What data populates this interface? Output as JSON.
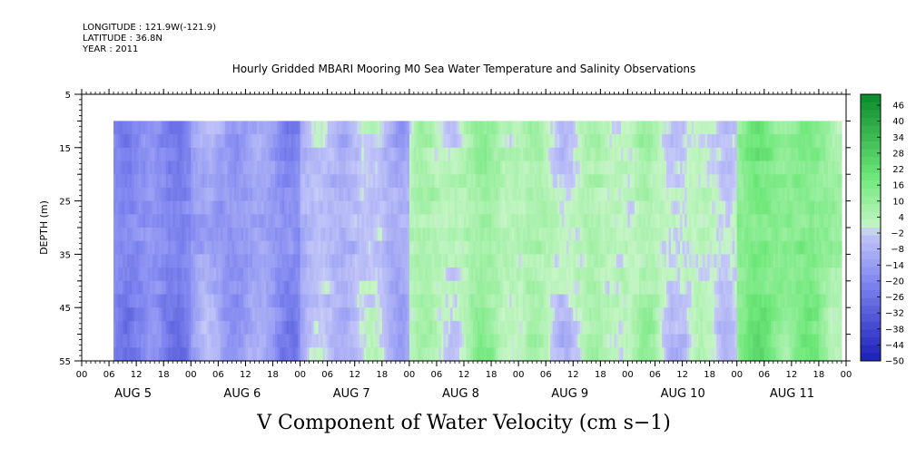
{
  "header": {
    "longitude": "LONGITUDE : 121.9W(-121.9)",
    "latitude": "LATITUDE : 36.8N",
    "year": "YEAR : 2011"
  },
  "chart_data": {
    "type": "heatmap",
    "title": "Hourly Gridded MBARI Mooring M0 Sea Water Temperature and Salinity Observations",
    "xlabel": "V Component of Water Velocity (cm s−1)",
    "ylabel": "DEPTH (m)",
    "ylim": [
      5,
      55
    ],
    "y_inverted": true,
    "yticks": [
      5,
      15,
      25,
      35,
      45,
      55
    ],
    "data_depth_range": [
      10,
      55
    ],
    "x_hour_ticks": [
      "00",
      "06",
      "12",
      "18",
      "00",
      "06",
      "12",
      "18",
      "00",
      "06",
      "12",
      "18",
      "00",
      "06",
      "12",
      "18",
      "00",
      "06",
      "12",
      "18",
      "00",
      "06",
      "12",
      "18",
      "00",
      "06",
      "12",
      "18",
      "00"
    ],
    "x_day_labels": [
      "AUG  5",
      "AUG  6",
      "AUG  7",
      "AUG  8",
      "AUG  9",
      "AUG 10",
      "AUG 11"
    ],
    "data_start_hour": 7,
    "x_hours_total": 168,
    "colorbar": {
      "labels": [
        "46",
        "40",
        "34",
        "28",
        "22",
        "16",
        "10",
        "4",
        "−2",
        "−8",
        "−14",
        "−20",
        "−26",
        "−32",
        "−38",
        "−44",
        "−50"
      ],
      "range": [
        -50,
        52
      ],
      "step": 6
    },
    "daily_mean_v": [
      -18,
      -14,
      -6,
      6,
      4,
      2,
      14
    ],
    "colors": {
      "neg_strong": "#1a1fb8",
      "neg_mid": "#7f86f0",
      "neg_light": "#c5c8f8",
      "pos_light": "#c6f5c6",
      "pos_mid": "#6fe87a",
      "pos_strong": "#0a8a2a"
    }
  }
}
